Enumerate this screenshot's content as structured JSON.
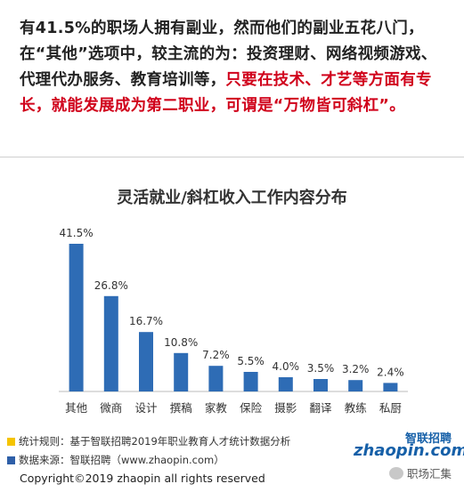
{
  "intro": {
    "part1": "有41.5%的职场人拥有副业，然而他们的副业五花八门，在“其他”选项中，较主流的为：投资理财、网络视频游戏、代理代办服务、教育培训等，",
    "part2": "只要在技术、才艺等方面有专长，就能发展成为第二职业，可谓是“万物皆可斜杠”。"
  },
  "chart_data": {
    "type": "bar",
    "title": "灵活就业/斜杠收入工作内容分布",
    "categories": [
      "其他",
      "微商",
      "设计",
      "撰稿",
      "家教",
      "保险",
      "摄影",
      "翻译",
      "教练",
      "私厨"
    ],
    "values": [
      41.5,
      26.8,
      16.7,
      10.8,
      7.2,
      5.5,
      4.0,
      3.5,
      3.2,
      2.4
    ],
    "value_labels": [
      "41.5%",
      "26.8%",
      "16.7%",
      "10.8%",
      "7.2%",
      "5.5%",
      "4.0%",
      "3.5%",
      "3.2%",
      "2.4%"
    ],
    "xlabel": "",
    "ylabel": "",
    "ylim": [
      0,
      45
    ],
    "grid": false,
    "bar_color": "#2e6cb5"
  },
  "footer": {
    "rule": "统计规则：基于智联招聘2019年职业教育人才统计数据分析",
    "source": "数据来源：智联招聘（www.zhaopin.com）",
    "copyright": "Copyright©2019 zhaopin all rights reserved",
    "rule_color": "#f5c400",
    "source_color": "#2e5fa8"
  },
  "logo": {
    "text_en": "zhaopin.com",
    "text_cn": "智联招聘"
  },
  "watermark": {
    "text": "职场汇集"
  }
}
